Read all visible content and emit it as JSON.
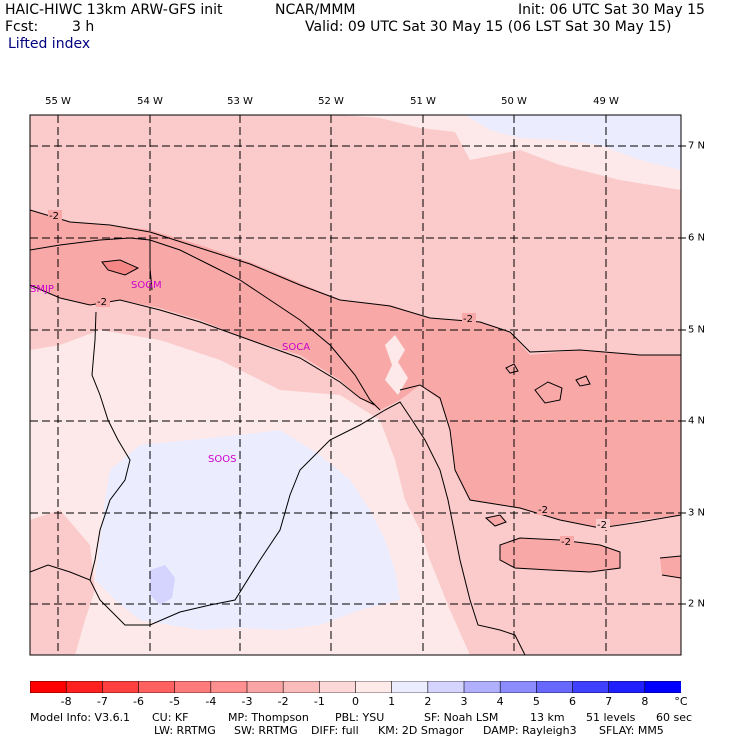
{
  "header": {
    "title_left": "HAIC-HIWC 13km ARW-GFS init",
    "title_mid": "NCAR/MMM",
    "init": "Init: 06 UTC Sat 30 May 15",
    "fcst_label": "Fcst:",
    "fcst_value": "3 h",
    "valid": "Valid: 09 UTC Sat 30 May 15 (06 LST Sat 30 May 15)",
    "field": "Lifted index"
  },
  "map": {
    "lon_labels": [
      "55 W",
      "54 W",
      "53 W",
      "52 W",
      "51 W",
      "50 W",
      "49 W"
    ],
    "lat_labels": [
      "7 N",
      "6 N",
      "5 N",
      "4 N",
      "3 N",
      "2 N"
    ],
    "station_labels": [
      "SMJP",
      "SOGM",
      "SOCA",
      "SOOS"
    ],
    "contour_label": "-2"
  },
  "colorbar": {
    "labels": [
      "-8",
      "-7",
      "-6",
      "-5",
      "-4",
      "-3",
      "-2",
      "-1",
      "0",
      "1",
      "2",
      "3",
      "4",
      "5",
      "6",
      "7",
      "8"
    ],
    "unit": "°C",
    "colors": [
      "#ff0000",
      "#ff2020",
      "#ff4040",
      "#ff6060",
      "#ff7b7b",
      "#ff9090",
      "#f9a5a5",
      "#fbbcbc",
      "#fdd8d8",
      "#ffeaea",
      "#ececff",
      "#d4d4ff",
      "#b0b0ff",
      "#8c8cff",
      "#6868ff",
      "#4040ff",
      "#2020ff",
      "#0000ff"
    ]
  },
  "footer": {
    "line1": {
      "model": "Model Info: V3.6.1",
      "cu": "CU: KF",
      "mp": "MP: Thompson",
      "pbl": "PBL: YSU",
      "sf": "SF: Noah LSM",
      "res": "13 km",
      "levels": "51 levels",
      "dt": "60 sec"
    },
    "line2": {
      "lw": "LW: RRTMG",
      "sw": "SW: RRTMG",
      "diff": "DIFF: full",
      "km": "KM: 2D Smagor",
      "damp": "DAMP: Rayleigh3",
      "sflay": "SFLAY: MM5"
    }
  }
}
